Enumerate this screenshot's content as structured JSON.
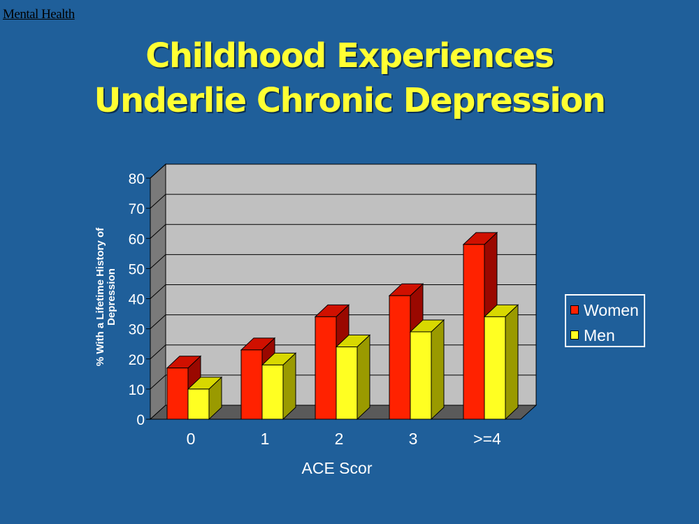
{
  "header": {
    "link_text": "Mental Health"
  },
  "title_lines": [
    "Childhood Experiences",
    "Underlie Chronic Depression"
  ],
  "colors": {
    "background": "#1f5f9a",
    "title": "#ffff33",
    "women": "#ff2200",
    "men": "#ffff22",
    "plot_back": "#c0c0c0"
  },
  "chart_data": {
    "type": "bar",
    "categories": [
      "0",
      "1",
      "2",
      "3",
      ">=4"
    ],
    "series": [
      {
        "name": "Women",
        "values": [
          17,
          23,
          34,
          41,
          58
        ]
      },
      {
        "name": "Men",
        "values": [
          10,
          18,
          24,
          29,
          34
        ]
      }
    ],
    "xlabel": "ACE Scor",
    "ylabel_lines": [
      "% With a Lifetime History of",
      "Depression"
    ],
    "yticks": [
      0,
      10,
      20,
      30,
      40,
      50,
      60,
      70,
      80
    ],
    "ylim": [
      0,
      80
    ],
    "grid": true,
    "three_d": true,
    "legend_position": "right"
  }
}
